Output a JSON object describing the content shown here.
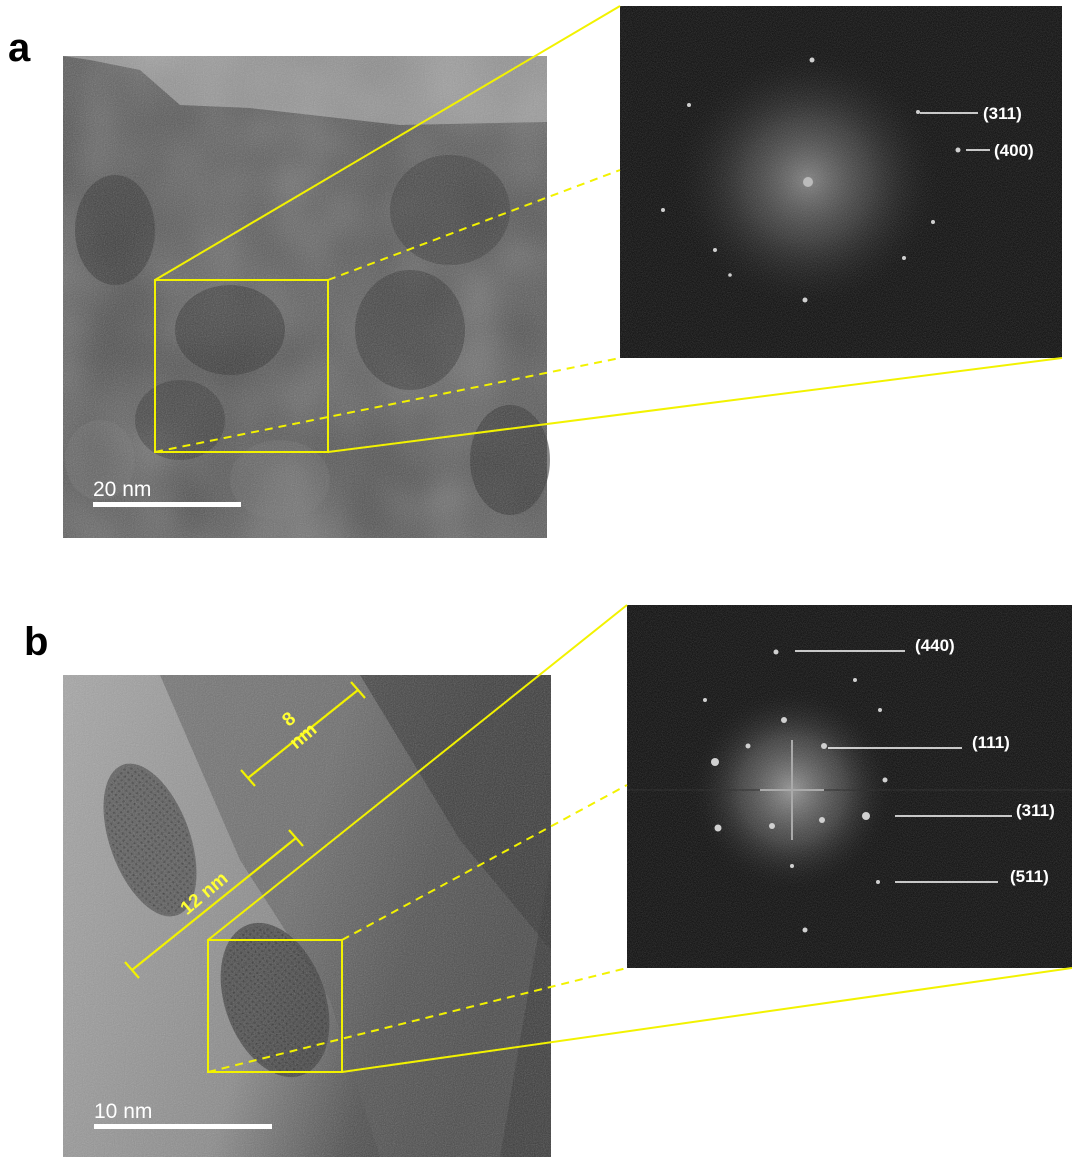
{
  "panel_a": {
    "letter": "a",
    "scale_bar_label": "20 nm",
    "fft_labels": [
      "(311)",
      "(400)"
    ]
  },
  "panel_b": {
    "letter": "b",
    "scale_bar_label": "10 nm",
    "measurement_1": "8",
    "measurement_1b": "nm",
    "measurement_2": "12 nm",
    "fft_labels": [
      "(440)",
      "(111)",
      "(311)",
      "(511)"
    ]
  },
  "colors": {
    "highlight": "#f2f200",
    "fft_background": "#050505",
    "tem_dark": "#2e2e2e",
    "tem_light": "#8c8c8c"
  }
}
